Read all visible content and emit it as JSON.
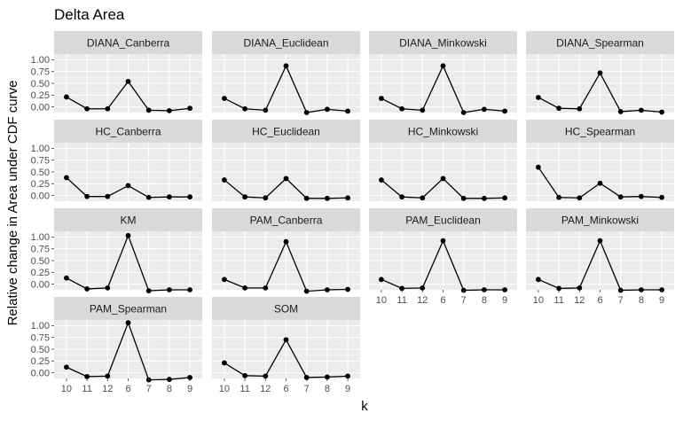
{
  "chart_data": {
    "type": "line",
    "title": "Delta Area",
    "xlabel": "k",
    "ylabel": "Relative change in Area under CDF curve",
    "categories": [
      "10",
      "11",
      "12",
      "6",
      "7",
      "8",
      "9"
    ],
    "yticks": [
      "0.00",
      "0.25",
      "0.50",
      "0.75",
      "1.00"
    ],
    "ylim": [
      -0.12,
      1.12
    ],
    "facet_layout": {
      "columns": 4,
      "rows": 4
    },
    "colors": {
      "panel_bg": "#ebebeb",
      "strip_bg": "#d9d9d9",
      "grid": "#ffffff",
      "line": "#000000",
      "point": "#000000"
    },
    "series": [
      {
        "name": "DIANA_Canberra",
        "values": [
          0.21,
          -0.04,
          -0.04,
          0.54,
          -0.07,
          -0.08,
          -0.03
        ]
      },
      {
        "name": "DIANA_Euclidean",
        "values": [
          0.18,
          -0.04,
          -0.07,
          0.87,
          -0.12,
          -0.05,
          -0.09
        ]
      },
      {
        "name": "DIANA_Minkowski",
        "values": [
          0.18,
          -0.04,
          -0.07,
          0.87,
          -0.12,
          -0.05,
          -0.09
        ]
      },
      {
        "name": "DIANA_Spearman",
        "values": [
          0.2,
          -0.03,
          -0.04,
          0.72,
          -0.1,
          -0.07,
          -0.11
        ]
      },
      {
        "name": "HC_Canberra",
        "values": [
          0.38,
          -0.02,
          -0.02,
          0.21,
          -0.04,
          -0.03,
          -0.03
        ]
      },
      {
        "name": "HC_Euclidean",
        "values": [
          0.33,
          -0.03,
          -0.05,
          0.36,
          -0.06,
          -0.06,
          -0.05
        ]
      },
      {
        "name": "HC_Minkowski",
        "values": [
          0.33,
          -0.03,
          -0.05,
          0.36,
          -0.06,
          -0.06,
          -0.05
        ]
      },
      {
        "name": "HC_Spearman",
        "values": [
          0.6,
          -0.04,
          -0.05,
          0.26,
          -0.03,
          -0.02,
          -0.04
        ]
      },
      {
        "name": "KM",
        "values": [
          0.13,
          -0.1,
          -0.08,
          1.03,
          -0.14,
          -0.12,
          -0.12
        ]
      },
      {
        "name": "PAM_Canberra",
        "values": [
          0.1,
          -0.08,
          -0.08,
          0.9,
          -0.15,
          -0.12,
          -0.11
        ]
      },
      {
        "name": "PAM_Euclidean",
        "values": [
          0.1,
          -0.09,
          -0.08,
          0.92,
          -0.13,
          -0.12,
          -0.12
        ]
      },
      {
        "name": "PAM_Minkowski",
        "values": [
          0.1,
          -0.09,
          -0.08,
          0.92,
          -0.13,
          -0.12,
          -0.12
        ]
      },
      {
        "name": "PAM_Spearman",
        "values": [
          0.12,
          -0.08,
          -0.07,
          1.06,
          -0.15,
          -0.14,
          -0.1
        ]
      },
      {
        "name": "SOM",
        "values": [
          0.21,
          -0.06,
          -0.07,
          0.7,
          -0.1,
          -0.09,
          -0.07
        ]
      }
    ]
  }
}
